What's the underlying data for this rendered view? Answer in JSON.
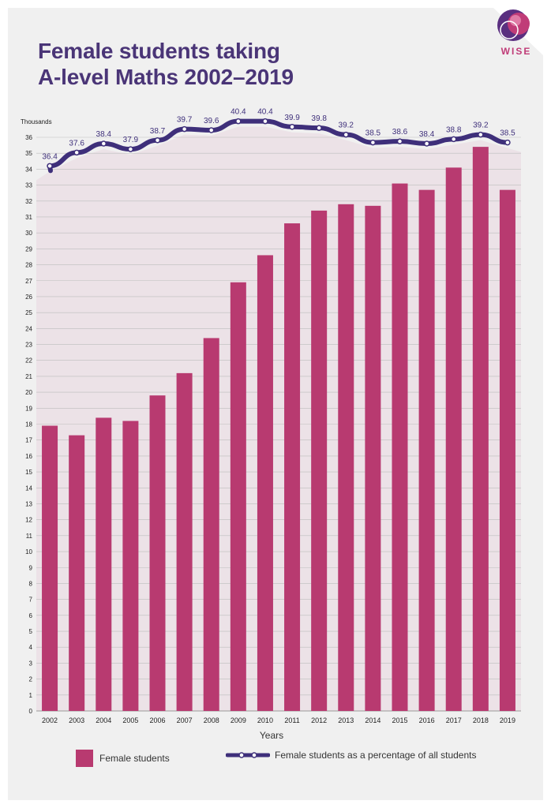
{
  "title_lines": [
    "Female students taking",
    "A-level Maths 2002–2019"
  ],
  "logo": {
    "text": "WISE",
    "icon": "wise-logo-circles"
  },
  "colors": {
    "bar": "#b83a70",
    "line": "#3e2f7a",
    "area": "#eadce3",
    "title": "#4a3577",
    "logo": "#c03c78"
  },
  "legend": {
    "bars_label": "Female students",
    "line_label": "Female students as a percentage of all students"
  },
  "chart_data": {
    "type": "bar",
    "title": "Female students taking A-level Maths 2002–2019",
    "ylabel": "Thousands",
    "xlabel": "Years",
    "ylim": [
      0,
      36
    ],
    "yticks": [
      0,
      1,
      2,
      3,
      4,
      5,
      6,
      7,
      8,
      9,
      10,
      11,
      12,
      13,
      14,
      15,
      16,
      17,
      18,
      19,
      20,
      21,
      22,
      23,
      24,
      25,
      26,
      27,
      28,
      29,
      30,
      31,
      32,
      33,
      34,
      35,
      36
    ],
    "grid": true,
    "legend_position": "bottom",
    "categories": [
      "2002",
      "2003",
      "2004",
      "2005",
      "2006",
      "2007",
      "2008",
      "2009",
      "2010",
      "2011",
      "2012",
      "2013",
      "2014",
      "2015",
      "2016",
      "2017",
      "2018",
      "2019"
    ],
    "series": [
      {
        "name": "Female students",
        "type": "bar",
        "values": [
          17.9,
          17.3,
          18.4,
          18.2,
          19.8,
          21.2,
          23.4,
          26.9,
          28.6,
          30.6,
          31.4,
          31.8,
          31.7,
          33.1,
          32.7,
          34.1,
          35.4,
          32.7
        ]
      },
      {
        "name": "Female students as a percentage of all students",
        "type": "line",
        "values": [
          36.4,
          37.6,
          38.4,
          37.9,
          38.7,
          39.7,
          39.6,
          40.4,
          40.4,
          39.9,
          39.8,
          39.2,
          38.5,
          38.6,
          38.4,
          38.8,
          39.2,
          38.5
        ],
        "labels": [
          "36.4",
          "37.6",
          "38.4",
          "37.9",
          "38.7",
          "39.7",
          "39.6",
          "40.4",
          "40.4",
          "39.9",
          "39.8",
          "39.2",
          "38.5",
          "38.6",
          "38.4",
          "38.8",
          "39.2",
          "38.5"
        ],
        "axis_range": [
          30,
          42
        ]
      }
    ]
  }
}
